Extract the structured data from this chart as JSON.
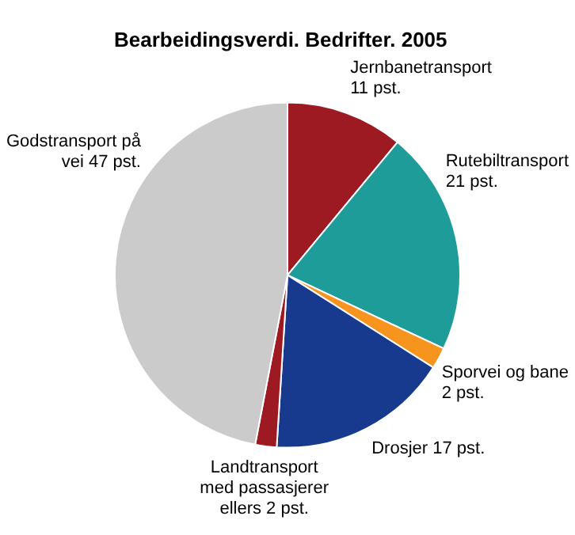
{
  "chart_data": {
    "type": "pie",
    "title": "Bearbeidingsverdi. Bedrifter. 2005",
    "categories": [
      "Jernbanetransport",
      "Rutebiltransport",
      "Sporvei og bane",
      "Drosjer",
      "Landtransport med passasjerer ellers",
      "Godstransport på vei"
    ],
    "values": [
      11,
      21,
      2,
      17,
      2,
      47
    ],
    "value_labels": [
      "11 pst.",
      "21 pst.",
      "2 pst.",
      "17 pst.",
      "2 pst.",
      "47 pst."
    ],
    "colors": [
      "#9e1a22",
      "#1e9c9a",
      "#f7941d",
      "#17398e",
      "#9e1a22",
      "#cbcbcb"
    ],
    "legend": false
  }
}
